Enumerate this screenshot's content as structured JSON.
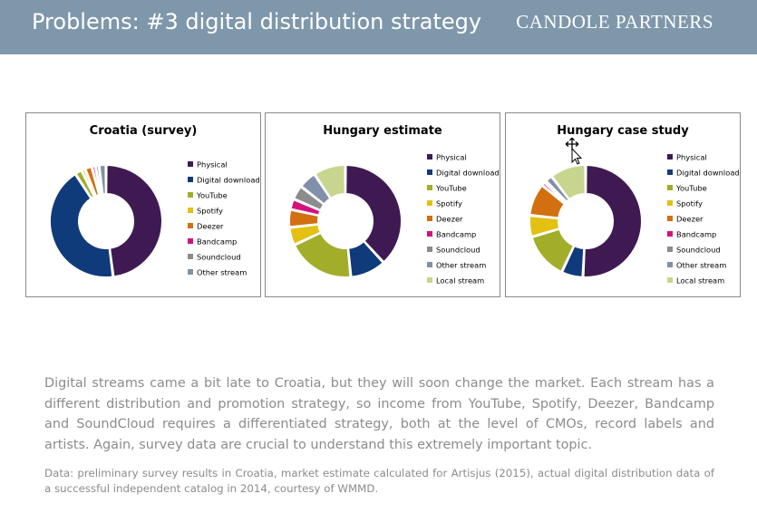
{
  "header": {
    "title": "Problems: #3 digital distribution strategy",
    "brand": "CANDOLE PARTNERS"
  },
  "chart_data": [
    {
      "type": "donut",
      "title": "Croatia (survey)",
      "series": [
        {
          "name": "Physical",
          "value": 47,
          "color": "#3f1a52"
        },
        {
          "name": "Digital download",
          "value": 42,
          "color": "#0f3b7b"
        },
        {
          "name": "YouTube",
          "value": 2,
          "color": "#a2ad2a"
        },
        {
          "name": "Spotify",
          "value": 1,
          "color": "#e3c012"
        },
        {
          "name": "Deezer",
          "value": 2,
          "color": "#d26f10"
        },
        {
          "name": "Bandcamp",
          "value": 1,
          "color": "#d4127c"
        },
        {
          "name": "Soundcloud",
          "value": 1,
          "color": "#8c8c8c"
        },
        {
          "name": "Other stream",
          "value": 2,
          "color": "#8090a8"
        }
      ]
    },
    {
      "type": "donut",
      "title": "Hungary estimate",
      "series": [
        {
          "name": "Physical",
          "value": 37,
          "color": "#3f1a52"
        },
        {
          "name": "Digital download",
          "value": 10,
          "color": "#0f3b7b"
        },
        {
          "name": "YouTube",
          "value": 19,
          "color": "#a2ad2a"
        },
        {
          "name": "Spotify",
          "value": 5,
          "color": "#e3c012"
        },
        {
          "name": "Deezer",
          "value": 5,
          "color": "#d26f10"
        },
        {
          "name": "Bandcamp",
          "value": 3,
          "color": "#d4127c"
        },
        {
          "name": "Soundcloud",
          "value": 4,
          "color": "#8c8c8c"
        },
        {
          "name": "Other stream",
          "value": 5,
          "color": "#8090a8"
        },
        {
          "name": "Local stream",
          "value": 9,
          "color": "#c8d58e"
        }
      ]
    },
    {
      "type": "donut",
      "title": "Hungary case study",
      "series": [
        {
          "name": "Physical",
          "value": 49,
          "color": "#3f1a52"
        },
        {
          "name": "Digital download",
          "value": 6,
          "color": "#0f3b7b"
        },
        {
          "name": "YouTube",
          "value": 13,
          "color": "#a2ad2a"
        },
        {
          "name": "Spotify",
          "value": 6,
          "color": "#e3c012"
        },
        {
          "name": "Deezer",
          "value": 9,
          "color": "#d26f10"
        },
        {
          "name": "Bandcamp",
          "value": 1,
          "color": "#d4127c"
        },
        {
          "name": "Soundcloud",
          "value": 0.5,
          "color": "#8c8c8c"
        },
        {
          "name": "Other stream",
          "value": 2,
          "color": "#8090a8"
        },
        {
          "name": "Local stream",
          "value": 10,
          "color": "#c8d58e"
        }
      ]
    }
  ],
  "description": {
    "body": "Digital streams came a bit late to Croatia, but they will soon change the market. Each stream has a different distribution and promotion strategy, so income from YouTube, Spotify, Deezer, Bandcamp and SoundCloud requires a differentiated strategy, both at the level of CMOs, record labels and artists.  Again, survey data are crucial to understand this extremely important topic.",
    "source": "Data: preliminary survey results in Croatia, market estimate calculated for Artisjus (2015), actual digital distribution data of a successful independent catalog in 2014, courtesy of WMMD."
  }
}
